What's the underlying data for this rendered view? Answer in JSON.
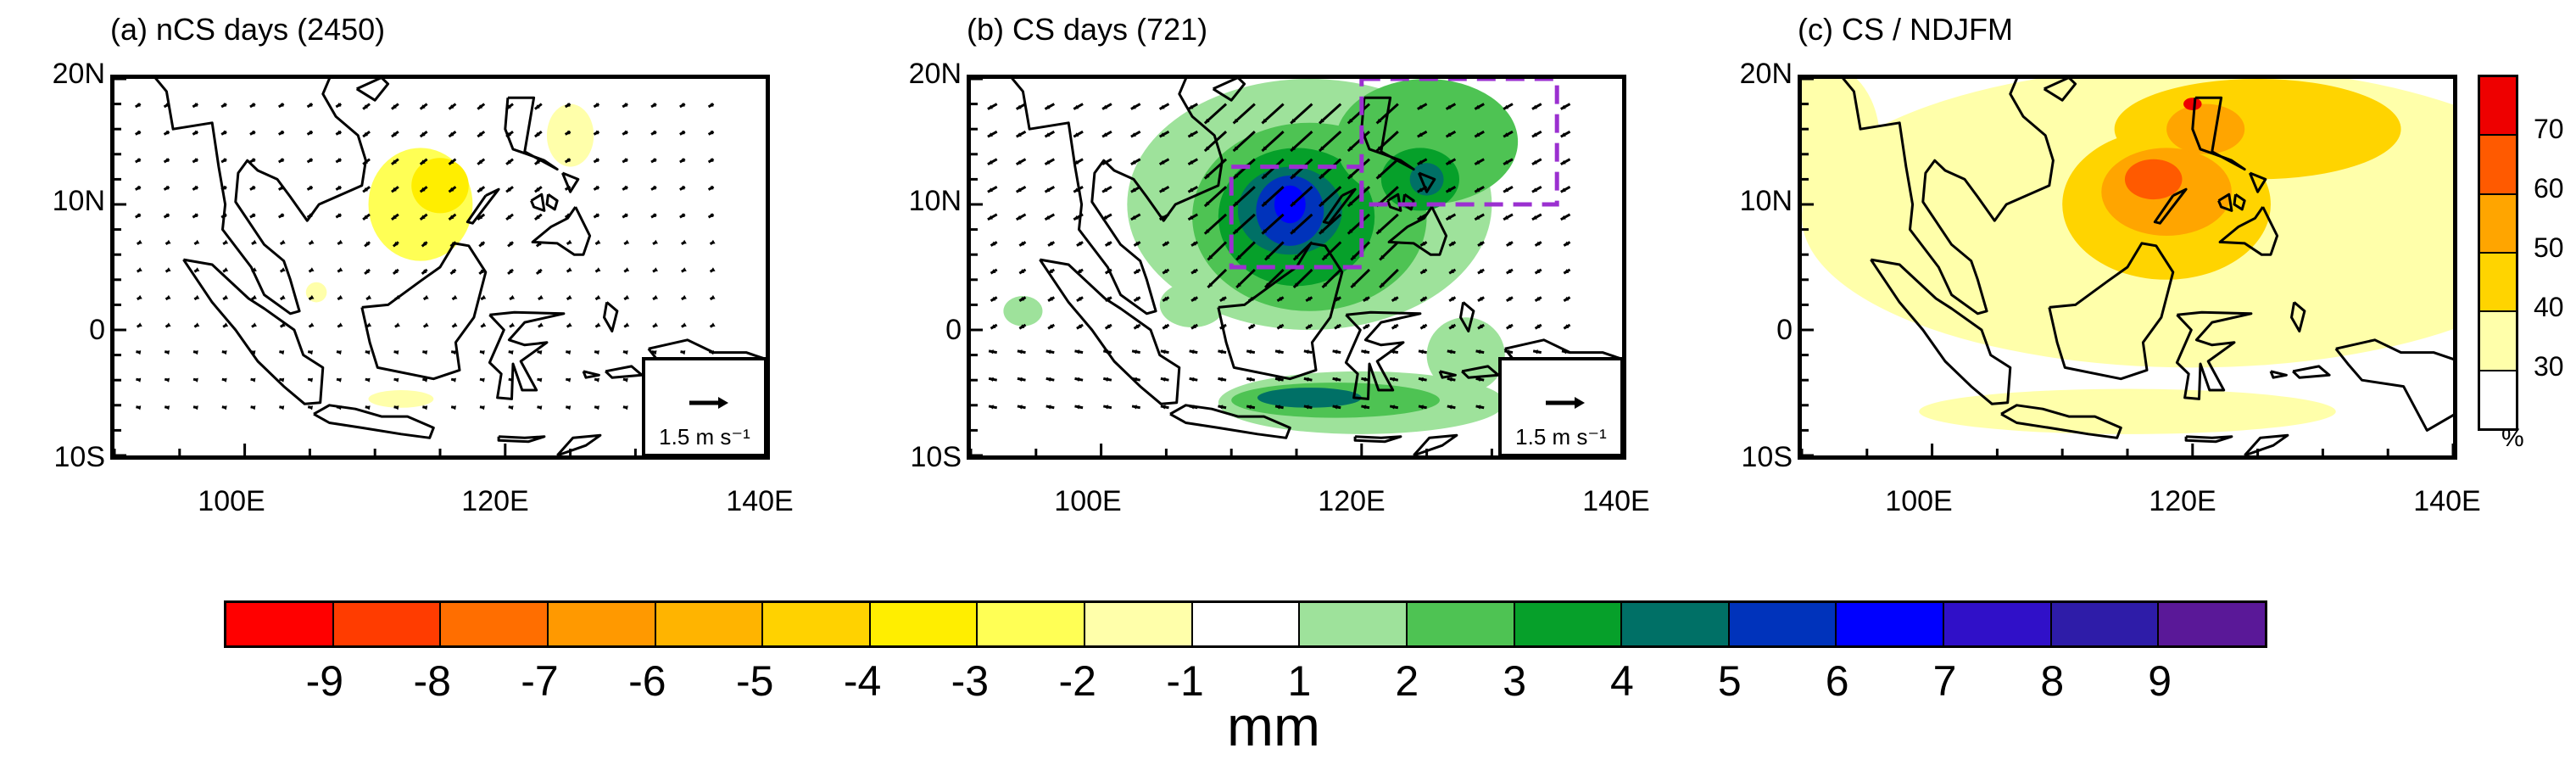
{
  "panels": [
    {
      "id": "a",
      "title": "(a) nCS days (2450)",
      "has_vectors": true,
      "has_boxes": false,
      "ref_vector_label": "1.5 m s⁻¹"
    },
    {
      "id": "b",
      "title": "(b) CS days (721)",
      "has_vectors": true,
      "has_boxes": true,
      "ref_vector_label": "1.5 m s⁻¹"
    },
    {
      "id": "c",
      "title": "(c) CS / NDJFM",
      "has_vectors": false,
      "has_boxes": false
    }
  ],
  "axes": {
    "lat_labels": [
      "20N",
      "10N",
      "0",
      "10S"
    ],
    "lon_labels": [
      "100E",
      "120E",
      "140E"
    ],
    "lat_range": [
      -10,
      20
    ],
    "lon_range": [
      90,
      140
    ]
  },
  "precip_colorbar": {
    "unit": "mm",
    "ticks": [
      "-9",
      "-8",
      "-7",
      "-6",
      "-5",
      "-4",
      "-3",
      "-2",
      "-1",
      "1",
      "2",
      "3",
      "4",
      "5",
      "6",
      "7",
      "8",
      "9"
    ],
    "colors": [
      "#ff0000",
      "#ff3c00",
      "#ff6e00",
      "#ff9900",
      "#ffb400",
      "#ffd200",
      "#ffee00",
      "#ffff55",
      "#ffffaa",
      "#ffffff",
      "#9ee29b",
      "#4ec353",
      "#06a02a",
      "#007066",
      "#0033bb",
      "#0000ff",
      "#3010c8",
      "#2e1ca8",
      "#5a1898"
    ]
  },
  "pct_colorbar": {
    "unit": "%",
    "ticks": [
      "70",
      "60",
      "50",
      "40",
      "30"
    ],
    "colors": [
      "#ee0000",
      "#ff5a00",
      "#ffa500",
      "#ffd400",
      "#ffffaa",
      "#ffffff"
    ]
  },
  "colors": {
    "land_line": "#000000",
    "box_line": "#9b30d0"
  }
}
